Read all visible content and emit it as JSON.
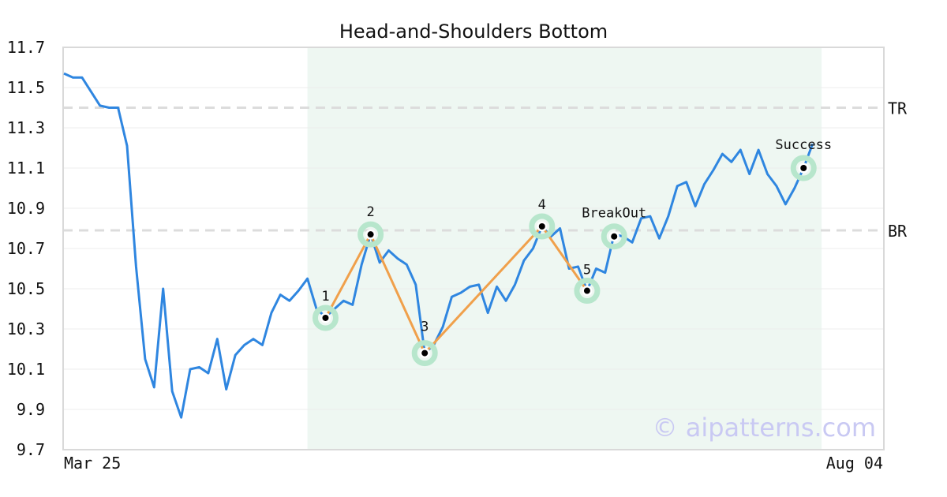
{
  "chart_data": {
    "type": "line",
    "title": "Head-and-Shoulders Bottom",
    "xlabel": "",
    "ylabel": "",
    "ylim": [
      9.7,
      11.7
    ],
    "y_ticks": [
      "11.7",
      "11.5",
      "11.3",
      "11.1",
      "10.9",
      "10.7",
      "10.5",
      "10.3",
      "10.1",
      "9.9",
      "9.7"
    ],
    "x_tick_labels": [
      {
        "index": 0,
        "label": "Mar 25"
      },
      {
        "index": 90,
        "label": "Aug 04"
      }
    ],
    "grid": true,
    "highlight_range": {
      "start_index": 27,
      "end_index": 84
    },
    "series": [
      {
        "color": "#2f86e0",
        "values": [
          11.57,
          11.55,
          11.55,
          11.48,
          11.41,
          11.4,
          11.4,
          11.21,
          10.61,
          10.15,
          10.01,
          10.5,
          9.99,
          9.86,
          10.1,
          10.11,
          10.08,
          10.25,
          10.0,
          10.17,
          10.22,
          10.25,
          10.22,
          10.38,
          10.47,
          10.44,
          10.49,
          10.55,
          10.4,
          10.36,
          10.4,
          10.44,
          10.42,
          10.62,
          10.77,
          10.63,
          10.69,
          10.65,
          10.62,
          10.52,
          10.18,
          10.22,
          10.31,
          10.46,
          10.48,
          10.51,
          10.52,
          10.38,
          10.51,
          10.44,
          10.52,
          10.64,
          10.7,
          10.81,
          10.76,
          10.8,
          10.6,
          10.61,
          10.49,
          10.6,
          10.58,
          10.77,
          10.76,
          10.73,
          10.85,
          10.86,
          10.75,
          10.86,
          11.01,
          11.03,
          10.91,
          11.02,
          11.09,
          11.17,
          11.13,
          11.19,
          11.07,
          11.19,
          11.07,
          11.01,
          10.92,
          11.0,
          11.1,
          11.22
        ]
      }
    ],
    "pattern": {
      "color": "#f0a04b",
      "points": [
        {
          "label": "1",
          "index": 29,
          "value": 10.355
        },
        {
          "label": "2",
          "index": 34,
          "value": 10.77
        },
        {
          "label": "3",
          "index": 40,
          "value": 10.18
        },
        {
          "label": "4",
          "index": 53,
          "value": 10.81
        },
        {
          "label": "5",
          "index": 58,
          "value": 10.49
        }
      ]
    },
    "markers": [
      {
        "label": "BreakOut",
        "index": 61,
        "value": 10.76
      },
      {
        "label": "Success",
        "index": 82,
        "value": 11.1
      }
    ],
    "levels": [
      {
        "label": "TR",
        "value": 11.4
      },
      {
        "label": "BR",
        "value": 10.79
      }
    ]
  },
  "watermark": "© aipatterns.com",
  "colors": {
    "line": "#2f86e0",
    "pattern": "#f0a04b",
    "highlight": "#eef7f2",
    "marker_ring": "#b7e6cc",
    "level_line": "#dcdcdc"
  }
}
